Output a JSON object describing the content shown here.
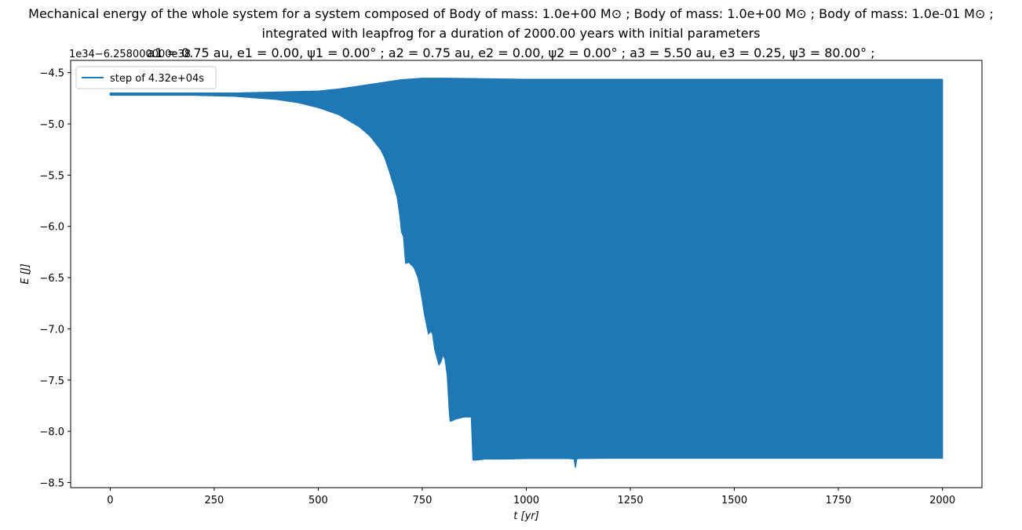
{
  "chart_data": {
    "type": "line",
    "title_lines": [
      "Mechanical energy of the whole system for a system composed of Body of mass: 1.0e+00 M⊙ ; Body of mass: 1.0e+00 M⊙ ; Body of mass: 1.0e-01 M⊙ ;",
      "integrated with leapfrog for a duration of 2000.00 years with initial parameters",
      "a1 = 0.75 au, e1 = 0.00, ψ1 = 0.00° ; a2 = 0.75 au, e2 = 0.00, ψ2 = 0.00° ; a3 = 5.50 au, e3 = 0.25, ψ3 = 80.00° ;"
    ],
    "offset_text": "1e34−6.258000000e38",
    "xlabel": "t [yr]",
    "ylabel": "E [J]",
    "xlim": [
      -95,
      2095
    ],
    "ylim": [
      -8.55,
      -4.38
    ],
    "xticks": [
      0,
      250,
      500,
      750,
      1000,
      1250,
      1500,
      1750,
      2000
    ],
    "yticks": [
      -8.5,
      -8.0,
      -7.5,
      -7.0,
      -6.5,
      -6.0,
      -5.5,
      -5.0,
      -4.5
    ],
    "ytick_labels": [
      "−8.5",
      "−8.0",
      "−7.5",
      "−7.0",
      "−6.5",
      "−6.0",
      "−5.5",
      "−5.0",
      "−4.5"
    ],
    "grid": false,
    "legend_position": "upper-left",
    "series": [
      {
        "name": "step of 4.32e+04s",
        "color": "#1f77b4",
        "upper_envelope": {
          "x": [
            0,
            100,
            200,
            300,
            400,
            500,
            550,
            600,
            650,
            700,
            750,
            800,
            900,
            1000,
            1250,
            1500,
            1750,
            2000
          ],
          "y": [
            -4.7,
            -4.7,
            -4.7,
            -4.7,
            -4.69,
            -4.68,
            -4.66,
            -4.63,
            -4.6,
            -4.57,
            -4.555,
            -4.555,
            -4.56,
            -4.565,
            -4.565,
            -4.565,
            -4.565,
            -4.565
          ]
        },
        "lower_envelope": {
          "x": [
            0,
            200,
            300,
            400,
            450,
            500,
            550,
            600,
            625,
            650,
            660,
            670,
            680,
            690,
            697,
            700,
            705,
            710,
            718,
            725,
            730,
            740,
            745,
            750,
            755,
            760,
            765,
            770,
            775,
            780,
            790,
            795,
            800,
            805,
            810,
            815,
            817,
            820,
            830,
            840,
            850,
            860,
            868,
            872,
            875,
            880,
            900,
            950,
            1000,
            1100,
            1115,
            1118,
            1121,
            1125,
            1200,
            1300,
            1400,
            1500,
            1600,
            1700,
            1800,
            1900,
            2000
          ],
          "y": [
            -4.72,
            -4.72,
            -4.73,
            -4.76,
            -4.79,
            -4.84,
            -4.91,
            -5.03,
            -5.12,
            -5.25,
            -5.33,
            -5.45,
            -5.58,
            -5.72,
            -5.92,
            -6.05,
            -6.1,
            -6.36,
            -6.35,
            -6.38,
            -6.4,
            -6.5,
            -6.6,
            -6.72,
            -6.85,
            -6.95,
            -7.05,
            -7.02,
            -7.05,
            -7.2,
            -7.35,
            -7.32,
            -7.25,
            -7.3,
            -7.45,
            -7.8,
            -7.9,
            -7.9,
            -7.88,
            -7.87,
            -7.86,
            -7.86,
            -7.86,
            -8.28,
            -8.28,
            -8.28,
            -8.27,
            -8.27,
            -8.265,
            -8.265,
            -8.27,
            -8.35,
            -8.27,
            -8.265,
            -8.262,
            -8.262,
            -8.262,
            -8.262,
            -8.262,
            -8.262,
            -8.262,
            -8.262,
            -8.262
          ]
        }
      }
    ]
  }
}
